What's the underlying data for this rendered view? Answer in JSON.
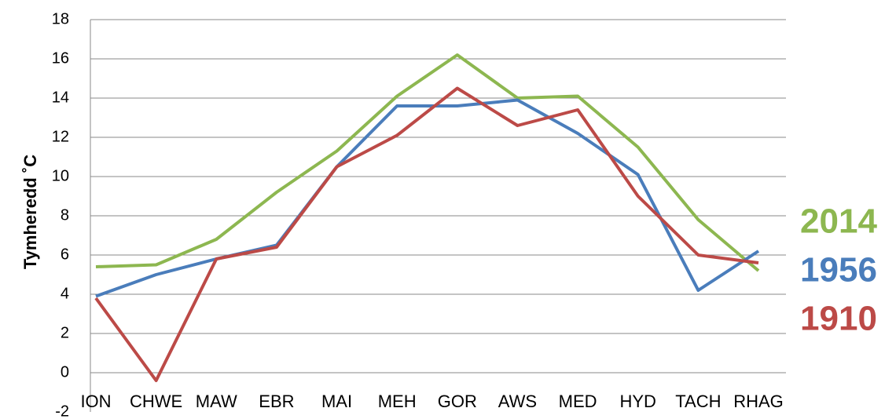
{
  "chart_data": {
    "type": "line",
    "y_label": "Tymheredd ˚C",
    "categories": [
      "ION",
      "CHWE",
      "MAW",
      "EBR",
      "MAI",
      "MEH",
      "GOR",
      "AWS",
      "MED",
      "HYD",
      "TACH",
      "RHAG"
    ],
    "series": [
      {
        "name": "2014",
        "color": "#8db750",
        "values": [
          5.4,
          5.5,
          6.8,
          9.2,
          11.3,
          14.1,
          16.2,
          14.0,
          14.1,
          11.5,
          7.8,
          5.2
        ]
      },
      {
        "name": "1956",
        "color": "#4a7dbb",
        "values": [
          3.9,
          5.0,
          5.8,
          6.5,
          10.5,
          13.6,
          13.6,
          13.9,
          12.2,
          10.1,
          4.2,
          6.2
        ]
      },
      {
        "name": "1910",
        "color": "#bc4a47",
        "values": [
          3.8,
          -0.4,
          5.8,
          6.4,
          10.5,
          12.1,
          14.5,
          12.6,
          13.4,
          9.0,
          6.0,
          5.6
        ]
      }
    ],
    "ylim": [
      -2,
      18
    ],
    "yticks": [
      -2,
      0,
      2,
      4,
      6,
      8,
      10,
      12,
      14,
      16,
      18
    ],
    "grid": true,
    "legend": "right"
  }
}
